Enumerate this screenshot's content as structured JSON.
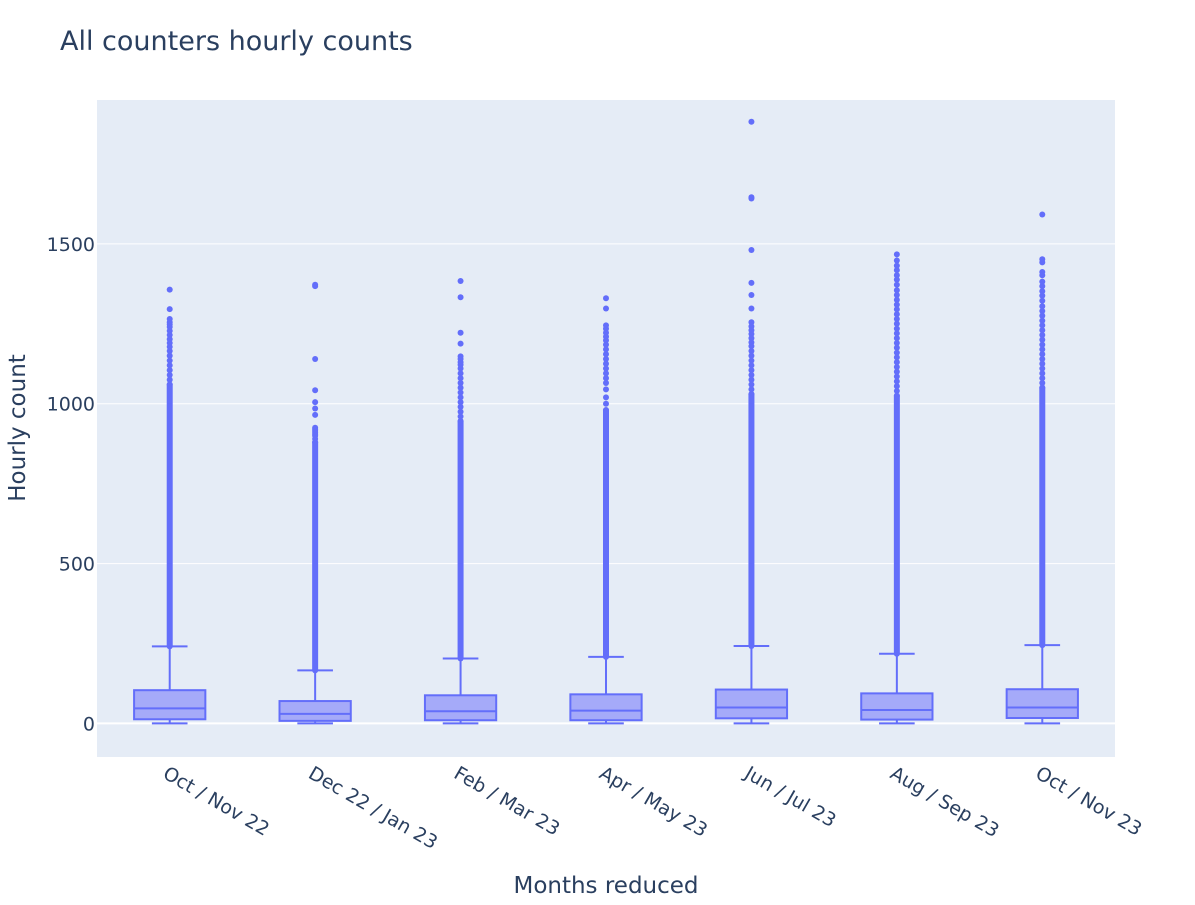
{
  "chart_data": {
    "type": "box",
    "title": "All counters hourly counts",
    "xlabel": "Months reduced",
    "ylabel": "Hourly count",
    "ylim": [
      -105,
      1950
    ],
    "yticks": [
      0,
      500,
      1000,
      1500
    ],
    "ytick_labels": [
      "0",
      "500",
      "1000",
      "1500"
    ],
    "grid": true,
    "colors": {
      "box_line": "#636efa",
      "box_fill": "#a5aaf9",
      "plot_bg": "#e5ecf6",
      "grid": "#ffffff",
      "text": "#2a3f5f"
    },
    "categories": [
      "Oct / Nov 22",
      "Dec 22 / Jan 23",
      "Feb / Mar 23",
      "Apr / May 23",
      "Jun / Jul 23",
      "Aug / Sep 23",
      "Oct / Nov 23"
    ],
    "boxes": [
      {
        "category": "Oct / Nov 22",
        "min": 0,
        "q1": 13,
        "median": 47,
        "q3": 104,
        "upper_fence": 241,
        "max": 1357,
        "outliers": [
          1357,
          1296,
          1265,
          1255,
          1248,
          1240,
          1228,
          1215,
          1202,
          1190,
          1178,
          1165,
          1150,
          1135,
          1120,
          1105,
          1090,
          1075,
          1060
        ]
      },
      {
        "category": "Dec 22 / Jan 23",
        "min": 0,
        "q1": 8,
        "median": 30,
        "q3": 70,
        "upper_fence": 166,
        "max": 1372,
        "outliers": [
          1372,
          1368,
          1140,
          1042,
          1005,
          985,
          965,
          925,
          920,
          915,
          910,
          905,
          900,
          890,
          880
        ]
      },
      {
        "category": "Feb / Mar 23",
        "min": 0,
        "q1": 10,
        "median": 38,
        "q3": 88,
        "upper_fence": 203,
        "max": 1384,
        "outliers": [
          1384,
          1333,
          1222,
          1188,
          1148,
          1140,
          1130,
          1122,
          1110,
          1095,
          1080,
          1065,
          1050,
          1035,
          1020,
          1005,
          990,
          975,
          960,
          945
        ]
      },
      {
        "category": "Apr / May 23",
        "min": 0,
        "q1": 10,
        "median": 40,
        "q3": 91,
        "upper_fence": 208,
        "max": 1330,
        "outliers": [
          1330,
          1298,
          1245,
          1235,
          1222,
          1210,
          1198,
          1185,
          1170,
          1155,
          1140,
          1125,
          1110,
          1095,
          1080,
          1065,
          1045,
          1020,
          1000,
          980
        ]
      },
      {
        "category": "Jun / Jul 23",
        "min": 0,
        "q1": 16,
        "median": 50,
        "q3": 106,
        "upper_fence": 242,
        "max": 1882,
        "outliers": [
          1882,
          1646,
          1642,
          1481,
          1378,
          1340,
          1298,
          1255,
          1242,
          1230,
          1218,
          1205,
          1192,
          1180,
          1165,
          1150,
          1135,
          1120,
          1105,
          1090,
          1075,
          1060,
          1045,
          1030
        ]
      },
      {
        "category": "Aug / Sep 23",
        "min": 0,
        "q1": 12,
        "median": 42,
        "q3": 94,
        "upper_fence": 218,
        "max": 1467,
        "outliers": [
          1467,
          1448,
          1432,
          1418,
          1402,
          1388,
          1372,
          1355,
          1340,
          1325,
          1310,
          1295,
          1280,
          1265,
          1250,
          1235,
          1220,
          1205,
          1190,
          1175,
          1160,
          1145,
          1130,
          1115,
          1100,
          1085,
          1070,
          1055,
          1040,
          1025
        ]
      },
      {
        "category": "Oct / Nov 23",
        "min": 0,
        "q1": 17,
        "median": 50,
        "q3": 107,
        "upper_fence": 245,
        "max": 1592,
        "outliers": [
          1592,
          1452,
          1442,
          1412,
          1402,
          1382,
          1368,
          1352,
          1338,
          1322,
          1305,
          1290,
          1275,
          1260,
          1245,
          1230,
          1215,
          1200,
          1185,
          1170,
          1155,
          1140,
          1125,
          1110,
          1095,
          1080,
          1065,
          1050
        ]
      }
    ]
  }
}
